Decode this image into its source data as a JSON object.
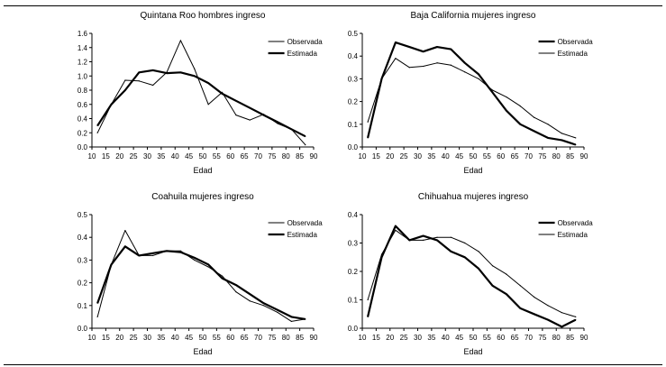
{
  "chart_data": [
    {
      "type": "line",
      "title": "Quintana Roo hombres ingreso",
      "xlabel": "Edad",
      "ylabel": "",
      "xlim": [
        10,
        90
      ],
      "ylim": [
        0,
        1.6
      ],
      "xticks": [
        "10",
        "15",
        "20",
        "25",
        "30",
        "35",
        "40",
        "45",
        "50",
        "55",
        "60",
        "65",
        "70",
        "75",
        "80",
        "85",
        "90"
      ],
      "yticks": [
        "0.0",
        "0.2",
        "0.4",
        "0.6",
        "0.8",
        "1.0",
        "1.2",
        "1.4",
        "1.6"
      ],
      "legend_position": "top-right",
      "series": [
        {
          "name": "Observada",
          "weight": "thin",
          "x": [
            12,
            17,
            22,
            27,
            32,
            37,
            42,
            47,
            52,
            57,
            62,
            67,
            72,
            77,
            82,
            87
          ],
          "y": [
            0.2,
            0.6,
            0.94,
            0.93,
            0.87,
            1.05,
            1.5,
            1.1,
            0.6,
            0.77,
            0.45,
            0.38,
            0.46,
            0.33,
            0.25,
            0.03
          ]
        },
        {
          "name": "Estimada",
          "weight": "thick",
          "x": [
            12,
            17,
            22,
            27,
            32,
            37,
            42,
            47,
            52,
            57,
            62,
            67,
            72,
            77,
            82,
            87
          ],
          "y": [
            0.3,
            0.6,
            0.8,
            1.05,
            1.08,
            1.04,
            1.05,
            1.0,
            0.9,
            0.75,
            0.65,
            0.55,
            0.45,
            0.35,
            0.25,
            0.15
          ]
        }
      ]
    },
    {
      "type": "line",
      "title": "Baja California mujeres ingreso",
      "xlabel": "Edad",
      "ylabel": "",
      "xlim": [
        10,
        90
      ],
      "ylim": [
        0,
        0.5
      ],
      "xticks": [
        "10",
        "15",
        "20",
        "25",
        "30",
        "35",
        "40",
        "45",
        "50",
        "55",
        "60",
        "65",
        "70",
        "75",
        "80",
        "85",
        "90"
      ],
      "yticks": [
        "0.0",
        "0.1",
        "0.2",
        "0.3",
        "0.4",
        "0.5"
      ],
      "legend_position": "top-right",
      "series": [
        {
          "name": "Observada",
          "weight": "thick",
          "x": [
            12,
            17,
            22,
            27,
            32,
            37,
            42,
            47,
            52,
            57,
            62,
            67,
            72,
            77,
            82,
            87
          ],
          "y": [
            0.04,
            0.3,
            0.46,
            0.44,
            0.42,
            0.44,
            0.43,
            0.37,
            0.32,
            0.24,
            0.16,
            0.1,
            0.07,
            0.04,
            0.03,
            0.01
          ]
        },
        {
          "name": "Estimada",
          "weight": "thin",
          "x": [
            12,
            17,
            22,
            27,
            32,
            37,
            42,
            47,
            52,
            57,
            62,
            67,
            72,
            77,
            82,
            87
          ],
          "y": [
            0.11,
            0.3,
            0.39,
            0.35,
            0.355,
            0.37,
            0.36,
            0.33,
            0.3,
            0.25,
            0.22,
            0.18,
            0.13,
            0.1,
            0.06,
            0.04
          ]
        }
      ]
    },
    {
      "type": "line",
      "title": "Coahuila mujeres ingreso",
      "xlabel": "Edad",
      "ylabel": "",
      "xlim": [
        10,
        90
      ],
      "ylim": [
        0,
        0.5
      ],
      "xticks": [
        "10",
        "15",
        "20",
        "25",
        "30",
        "35",
        "40",
        "45",
        "50",
        "55",
        "60",
        "65",
        "70",
        "75",
        "80",
        "85",
        "90"
      ],
      "yticks": [
        "0.0",
        "0.1",
        "0.2",
        "0.3",
        "0.4",
        "0.5"
      ],
      "legend_position": "top-right",
      "series": [
        {
          "name": "Observada",
          "weight": "thin",
          "x": [
            12,
            17,
            22,
            27,
            32,
            37,
            42,
            47,
            52,
            57,
            62,
            67,
            72,
            77,
            82,
            87
          ],
          "y": [
            0.05,
            0.28,
            0.43,
            0.32,
            0.32,
            0.34,
            0.34,
            0.3,
            0.27,
            0.23,
            0.16,
            0.12,
            0.1,
            0.07,
            0.03,
            0.04
          ]
        },
        {
          "name": "Estimada",
          "weight": "thick",
          "x": [
            12,
            17,
            22,
            27,
            32,
            37,
            42,
            47,
            52,
            57,
            62,
            67,
            72,
            77,
            82,
            87
          ],
          "y": [
            0.11,
            0.28,
            0.36,
            0.32,
            0.33,
            0.34,
            0.335,
            0.31,
            0.28,
            0.22,
            0.19,
            0.15,
            0.11,
            0.08,
            0.05,
            0.04
          ]
        }
      ]
    },
    {
      "type": "line",
      "title": "Chihuahua mujeres ingreso",
      "xlabel": "Edad",
      "ylabel": "",
      "xlim": [
        10,
        90
      ],
      "ylim": [
        0,
        0.4
      ],
      "xticks": [
        "10",
        "15",
        "20",
        "25",
        "30",
        "35",
        "40",
        "45",
        "50",
        "55",
        "60",
        "65",
        "70",
        "75",
        "80",
        "85",
        "90"
      ],
      "yticks": [
        "0.0",
        "0.1",
        "0.2",
        "0.3",
        "0.4"
      ],
      "legend_position": "top-right",
      "series": [
        {
          "name": "Observada",
          "weight": "thick",
          "x": [
            12,
            17,
            22,
            27,
            32,
            37,
            42,
            47,
            52,
            57,
            62,
            67,
            72,
            77,
            82,
            87
          ],
          "y": [
            0.04,
            0.25,
            0.36,
            0.31,
            0.325,
            0.31,
            0.27,
            0.25,
            0.21,
            0.15,
            0.12,
            0.07,
            0.05,
            0.03,
            0.005,
            0.03
          ]
        },
        {
          "name": "Estimada",
          "weight": "thin",
          "x": [
            12,
            17,
            22,
            27,
            32,
            37,
            42,
            47,
            52,
            57,
            62,
            67,
            72,
            77,
            82,
            87
          ],
          "y": [
            0.1,
            0.26,
            0.345,
            0.31,
            0.31,
            0.32,
            0.32,
            0.3,
            0.27,
            0.22,
            0.19,
            0.15,
            0.11,
            0.08,
            0.055,
            0.04
          ]
        }
      ]
    }
  ]
}
